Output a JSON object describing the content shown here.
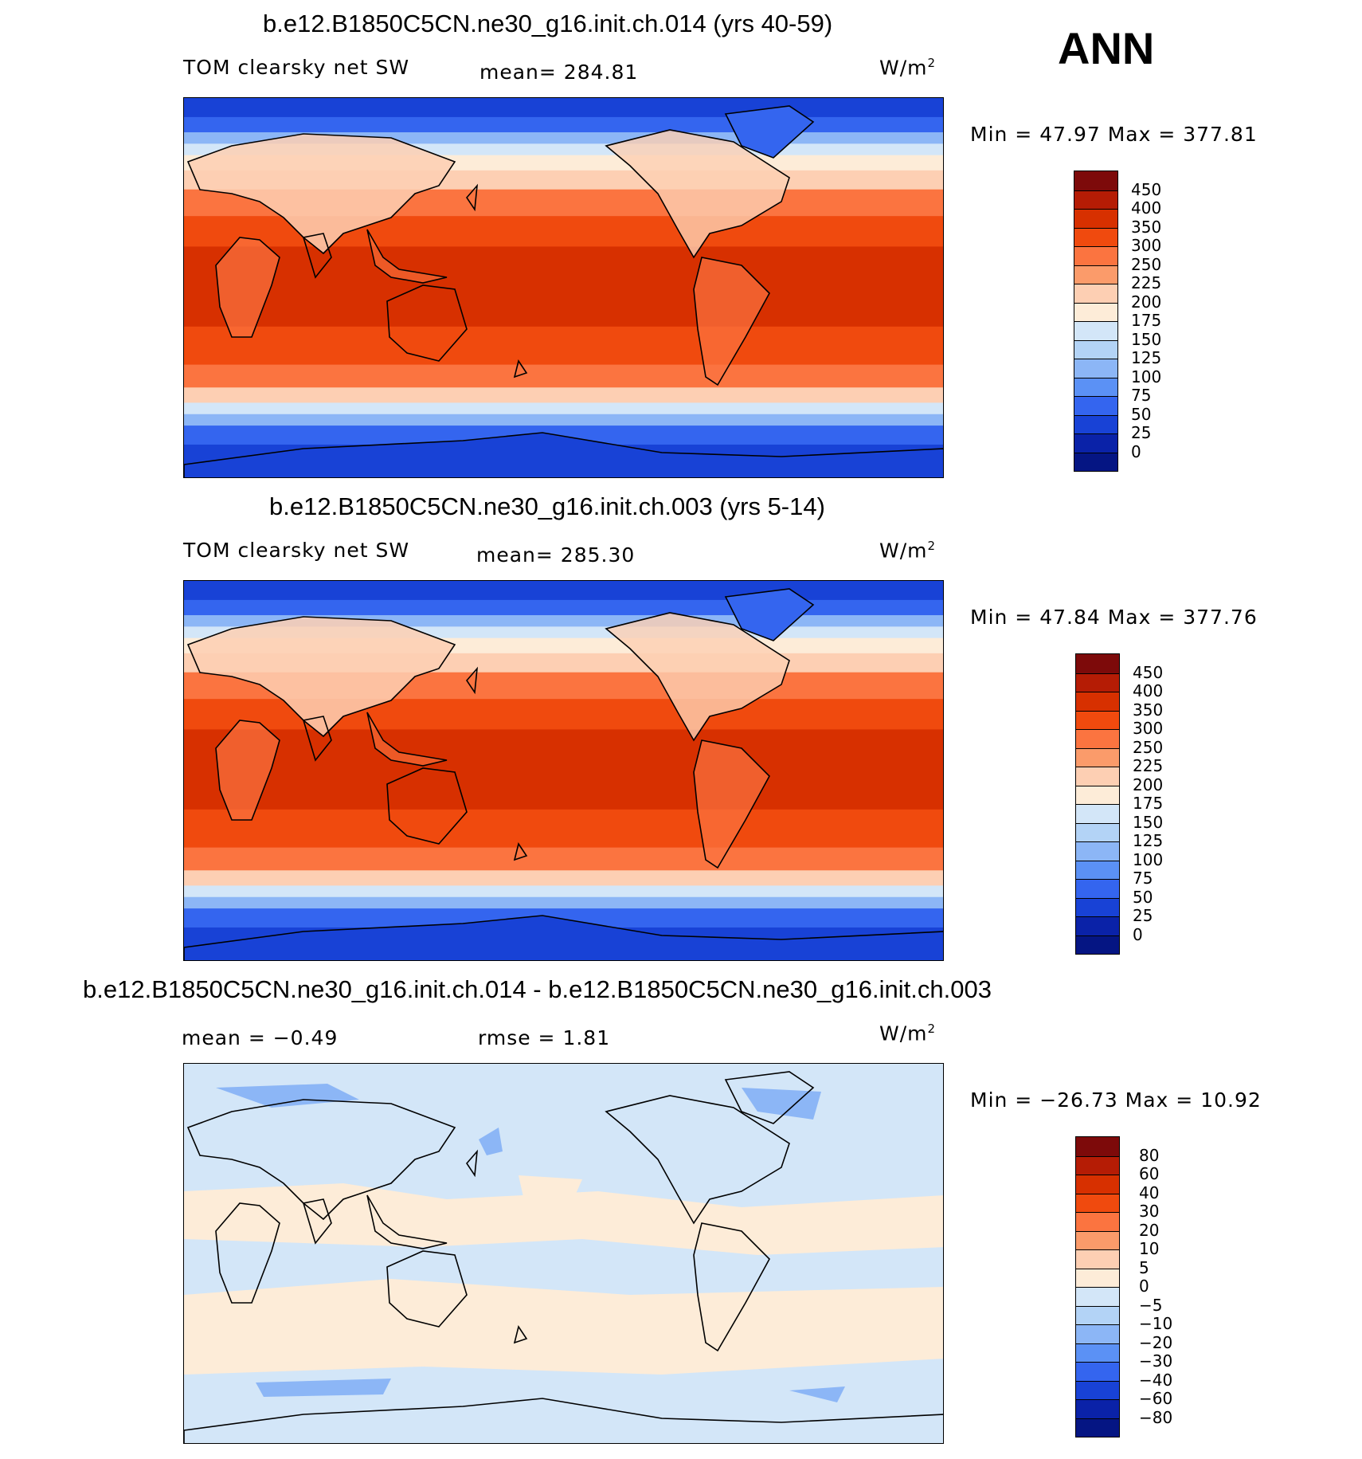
{
  "season": "ANN",
  "panels": [
    {
      "title": "b.e12.B1850C5CN.ne30_g16.init.ch.014 (yrs 40-59)",
      "variable": "TOM clearsky net SW",
      "stat1": "mean= 284.81",
      "stat2": "",
      "units_base": "W/m",
      "units_exp": "2",
      "minmax": "Min =   47.97 Max = 377.81",
      "levels": [
        "450",
        "400",
        "350",
        "300",
        "250",
        "225",
        "200",
        "175",
        "150",
        "125",
        "100",
        "75",
        "50",
        "25",
        "0"
      ],
      "colors": [
        "#7d0a0a",
        "#b51c05",
        "#d73000",
        "#f04a0e",
        "#fb7440",
        "#fb9b6a",
        "#fdcfb3",
        "#fdecd8",
        "#d3e6f8",
        "#b3d3f6",
        "#8cb6f6",
        "#5b91f5",
        "#3465ef",
        "#1842d6",
        "#0a22a8",
        "#051583"
      ],
      "kind": "abs"
    },
    {
      "title": "b.e12.B1850C5CN.ne30_g16.init.ch.003 (yrs 5-14)",
      "variable": "TOM clearsky net SW",
      "stat1": "mean= 285.30",
      "stat2": "",
      "units_base": "W/m",
      "units_exp": "2",
      "minmax": "Min =   47.84 Max = 377.76",
      "levels": [
        "450",
        "400",
        "350",
        "300",
        "250",
        "225",
        "200",
        "175",
        "150",
        "125",
        "100",
        "75",
        "50",
        "25",
        "0"
      ],
      "colors": [
        "#7d0a0a",
        "#b51c05",
        "#d73000",
        "#f04a0e",
        "#fb7440",
        "#fb9b6a",
        "#fdcfb3",
        "#fdecd8",
        "#d3e6f8",
        "#b3d3f6",
        "#8cb6f6",
        "#5b91f5",
        "#3465ef",
        "#1842d6",
        "#0a22a8",
        "#051583"
      ],
      "kind": "abs"
    },
    {
      "title": "b.e12.B1850C5CN.ne30_g16.init.ch.014 - b.e12.B1850C5CN.ne30_g16.init.ch.003",
      "variable": "",
      "stat1": "mean =   −0.49",
      "stat2": "rmse =    1.81",
      "units_base": "W/m",
      "units_exp": "2",
      "minmax": "Min = −26.73 Max =   10.92",
      "levels": [
        "80",
        "60",
        "40",
        "30",
        "20",
        "10",
        "5",
        "0",
        "−5",
        "−10",
        "−20",
        "−30",
        "−40",
        "−60",
        "−80"
      ],
      "colors": [
        "#7d0a0a",
        "#b51c05",
        "#d73000",
        "#f04a0e",
        "#fb7440",
        "#fb9b6a",
        "#fdcfb3",
        "#fdecd8",
        "#d3e6f8",
        "#b3d3f6",
        "#8cb6f6",
        "#5b91f5",
        "#3465ef",
        "#1842d6",
        "#0a22a8",
        "#051583"
      ],
      "kind": "diff"
    }
  ]
}
